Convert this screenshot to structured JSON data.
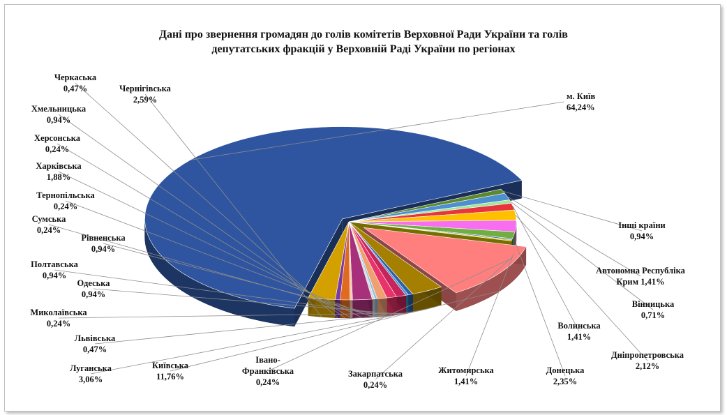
{
  "title_lines": [
    "Дані про звернення громадян до голів комітетів Верховної Ради України та голів",
    "депутатських фракцій у Верховній Раді України по регіонах"
  ],
  "chart_data": {
    "type": "pie",
    "title": "Дані про звернення громадян до голів комітетів Верховної Ради України та голів депутатських фракцій у Верховній Раді України по регіонах",
    "slices": [
      {
        "name": "м. Київ",
        "value": 64.24,
        "label": "64,24%",
        "color": "#2f55a0"
      },
      {
        "name": "Інші країни",
        "value": 0.94,
        "label": "0,94%",
        "color": "#5b8a2e"
      },
      {
        "name": "Автономна Республіка Крим",
        "value": 1.41,
        "label": "Крим 1,41%",
        "color": "#4f8fd0"
      },
      {
        "name": "Вінницька",
        "value": 0.71,
        "label": "0,71%",
        "color": "#9ee89a"
      },
      {
        "name": "Волинська",
        "value": 1.41,
        "label": "1,41%",
        "color": "#e8343c"
      },
      {
        "name": "Дніпропетровська",
        "value": 2.12,
        "label": "2,12%",
        "color": "#ffc000"
      },
      {
        "name": "Донецька",
        "value": 2.35,
        "label": "2,35%",
        "color": "#f76ef0"
      },
      {
        "name": "Житомирська",
        "value": 1.41,
        "label": "1,41%",
        "color": "#6fae40"
      },
      {
        "name": "Закарпатська",
        "value": 0.24,
        "label": "0,24%",
        "color": "#2e63b8"
      },
      {
        "name": "Івано-Франківська",
        "value": 0.24,
        "label": "0,24%",
        "color": "#d6c800"
      },
      {
        "name": "Київська",
        "value": 11.76,
        "label": "11,76%",
        "color": "#ff7f7f"
      },
      {
        "name": "Луганська",
        "value": 3.06,
        "label": "3,06%",
        "color": "#a58000"
      },
      {
        "name": "Львівська",
        "value": 0.47,
        "label": "0,47%",
        "color": "#2e5fa8"
      },
      {
        "name": "Миколаївська",
        "value": 0.24,
        "label": "0,24%",
        "color": "#3a8fc8"
      },
      {
        "name": "Одеська",
        "value": 0.94,
        "label": "0,94%",
        "color": "#c8235b"
      },
      {
        "name": "Полтавська",
        "value": 0.94,
        "label": "0,94%",
        "color": "#e8326a"
      },
      {
        "name": "Рівненська",
        "value": 0.94,
        "label": "0,94%",
        "color": "#f0a070"
      },
      {
        "name": "Сумська",
        "value": 0.24,
        "label": "0,24%",
        "color": "#8fbfe0"
      },
      {
        "name": "Тернопільська",
        "value": 0.24,
        "label": "0,24%",
        "color": "#d9d9d9"
      },
      {
        "name": "Харківська",
        "value": 1.88,
        "label": "1,88%",
        "color": "#a8307a"
      },
      {
        "name": "Херсонська",
        "value": 0.24,
        "label": "0,24%",
        "color": "#f6c8b8"
      },
      {
        "name": "Хмельницька",
        "value": 0.94,
        "label": "0,94%",
        "color": "#e06a20"
      },
      {
        "name": "Черкаська",
        "value": 0.47,
        "label": "0,47%",
        "color": "#7a3aa0"
      },
      {
        "name": "Чернігівська",
        "value": 2.59,
        "label": "2,59%",
        "color": "#d4a000"
      }
    ]
  }
}
